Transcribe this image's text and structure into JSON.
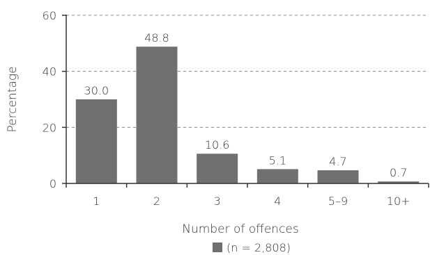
{
  "chart_data": {
    "type": "bar",
    "categories": [
      "1",
      "2",
      "3",
      "4",
      "5–9",
      "10+"
    ],
    "series": [
      {
        "name": "(n = 2,808)",
        "values": [
          30.0,
          48.8,
          10.6,
          5.1,
          4.7,
          0.7
        ],
        "color": "#707070"
      }
    ],
    "data_labels": [
      "30.0",
      "48.8",
      "10.6",
      "5.1",
      "4.7",
      "0.7"
    ],
    "title": "",
    "xlabel": "Number of offences",
    "ylabel": "Percentage",
    "ylim": [
      0,
      60
    ],
    "yticks": [
      0,
      20,
      40,
      60
    ],
    "grid": "horizontal dashed",
    "legend": "bottom-center",
    "colors": {
      "bar": "#707070",
      "axis": "#333333",
      "grid": "#888888",
      "text": "#333333"
    }
  }
}
